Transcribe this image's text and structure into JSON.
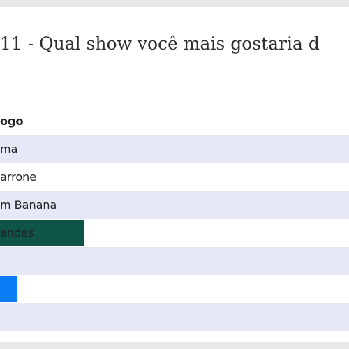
{
  "poll": {
    "title": "11 - Qual show você mais gostaria d",
    "colors": {
      "row_alt": "#e4e9f5",
      "bar_dark_green": "#0e5447",
      "bar_blue": "#0a7df6"
    },
    "options": [
      {
        "label": "ogo",
        "bar_color": null,
        "bar_fraction": 0
      },
      {
        "label": "ma",
        "bar_color": null,
        "bar_fraction": 0
      },
      {
        "label": "arrone",
        "bar_color": null,
        "bar_fraction": 0
      },
      {
        "label": "m Banana",
        "bar_color": null,
        "bar_fraction": 0
      },
      {
        "label": "andes",
        "bar_color": "#0e5447",
        "bar_fraction": 0.242
      },
      {
        "label": "",
        "bar_color": null,
        "bar_fraction": 0
      },
      {
        "label": "",
        "bar_color": "#0a7df6",
        "bar_fraction": 0.05
      },
      {
        "label": "",
        "bar_color": null,
        "bar_fraction": 0
      }
    ]
  }
}
